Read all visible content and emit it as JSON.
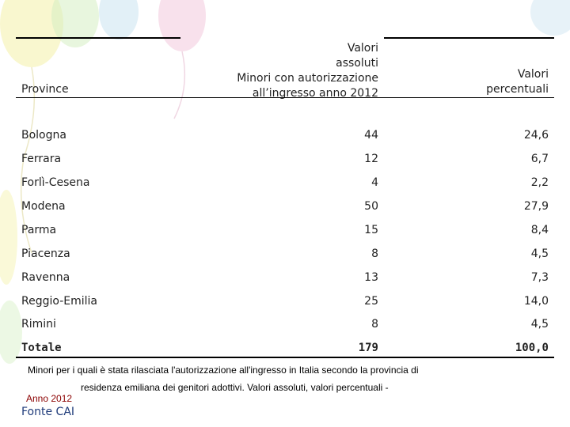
{
  "table": {
    "header": {
      "province": "Province",
      "abs_lines": [
        "Valori",
        "assoluti",
        "Minori con autorizzazione",
        "all’ingresso anno 2012"
      ],
      "pct_lines": [
        "Valori",
        "percentuali"
      ]
    },
    "rows": [
      {
        "province": "Bologna",
        "abs": "44",
        "pct": "24,6"
      },
      {
        "province": "Ferrara",
        "abs": "12",
        "pct": "6,7"
      },
      {
        "province": "Forlì-Cesena",
        "abs": "4",
        "pct": "2,2"
      },
      {
        "province": "Modena",
        "abs": "50",
        "pct": "27,9"
      },
      {
        "province": "Parma",
        "abs": "15",
        "pct": "8,4"
      },
      {
        "province": "Piacenza",
        "abs": "8",
        "pct": "4,5"
      },
      {
        "province": "Ravenna",
        "abs": "13",
        "pct": "7,3"
      },
      {
        "province": "Reggio-Emilia",
        "abs": "25",
        "pct": "14,0"
      },
      {
        "province": "Rimini",
        "abs": "8",
        "pct": "4,5"
      }
    ],
    "total": {
      "province": "Totale",
      "abs": "179",
      "pct": "100,0"
    }
  },
  "caption": {
    "line1": "Minori per i quali è stata rilasciata l'autorizzazione all'ingresso in Italia secondo la provincia di",
    "line2": "residenza emiliana dei genitori adottivi. Valori assoluti, valori percentuali -",
    "year": "Anno 2012"
  },
  "source": "Fonte CAI",
  "colors": {
    "balloon_left": "#f4f1a8",
    "balloon_mid": "#cfe6f2",
    "balloon_pink": "#f2c9dc",
    "source_text": "#1f3b7a",
    "year_text": "#8b0000"
  }
}
